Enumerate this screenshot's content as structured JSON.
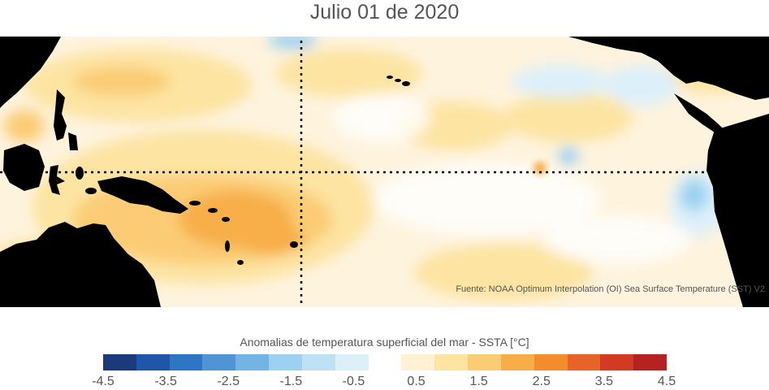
{
  "title": "Julio 01 de 2020",
  "source": "Fuente: NOAA Optimum Interpolation (OI) Sea Surface Temperature (SST) V2",
  "colorbar": {
    "title": "Anomalias de temperatura superficial del mar - SSTA  [°C]",
    "colors": [
      "#1b3a7a",
      "#1f56a8",
      "#2e75c3",
      "#4f95d5",
      "#74b4e4",
      "#9dd1f1",
      "#bde1f5",
      "#dcf0fa",
      "#ffffff",
      "#fff2d2",
      "#fde4a2",
      "#fbcc74",
      "#f8ae48",
      "#f28c2c",
      "#e8632a",
      "#d33a24",
      "#b42222"
    ],
    "ticks": [
      "-4.5",
      "-3.5",
      "-2.5",
      "-1.5",
      "-0.5",
      "0.5",
      "1.5",
      "2.5",
      "3.5",
      "4.5"
    ],
    "range": [
      -4.5,
      4.5
    ]
  },
  "map_colors": {
    "land": "#000000",
    "ocean_neutral": "#fef3dd",
    "warm_light": "#fde4a2",
    "warm": "#fbcc74",
    "warm_strong": "#f8ae48",
    "cool": "#dcf0fa",
    "cool_strong": "#9dd1f1"
  }
}
